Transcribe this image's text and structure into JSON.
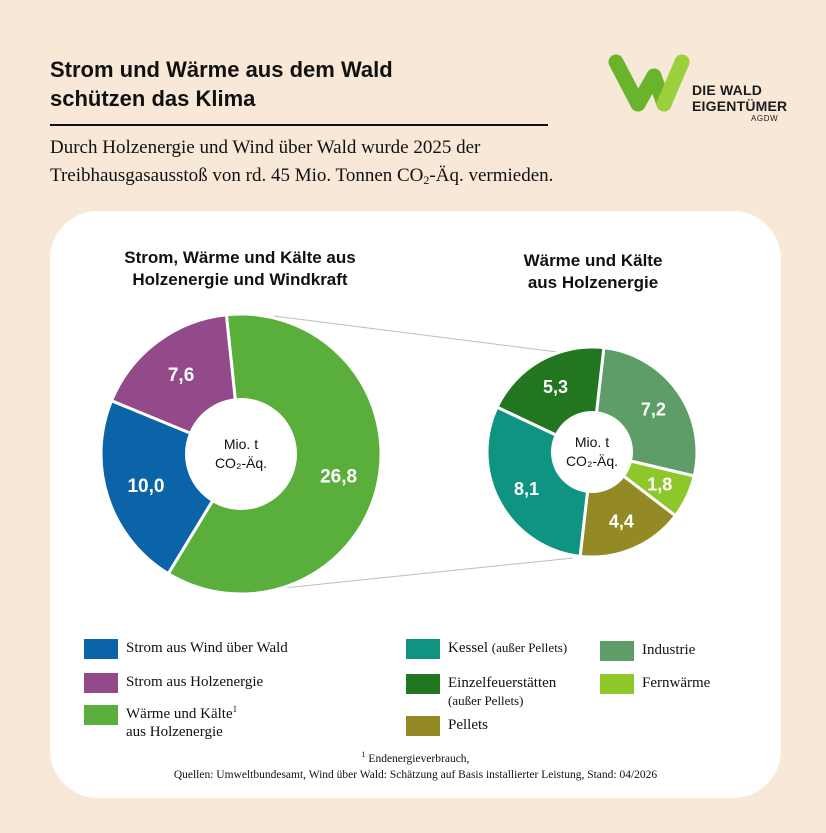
{
  "header": {
    "title_line1": "Strom und Wärme aus dem Wald",
    "title_line2": "schützen das Klima",
    "subtitle_line1": "Durch Holzenergie und Wind über Wald wurde 2025 der",
    "subtitle_line2_before": "Treibhausgasausstoß von rd. 45 Mio. Tonnen CO",
    "subtitle_line2_sub": "2",
    "subtitle_line2_after": "-Äq. vermieden."
  },
  "logo": {
    "line1": "DIE WALD",
    "line2": "EIGENTÜMER",
    "line3": "AGDW",
    "colors": [
      "#6ab42d",
      "#9ccf3c"
    ]
  },
  "chart_data": [
    {
      "type": "pie",
      "donut": true,
      "title_line1": "Strom, Wärme und Kälte aus",
      "title_line2": "Holzenergie und Windkraft",
      "center_line1": "Mio. t",
      "center_line2": "CO₂-Äq.",
      "slices": [
        {
          "label": "Wärme und Kälte aus Holzenergie",
          "value": 26.8,
          "display": "26,8",
          "color": "#5aaf3c"
        },
        {
          "label": "Strom aus Wind über Wald",
          "value": 10.0,
          "display": "10,0",
          "color": "#0b64a8"
        },
        {
          "label": "Strom aus Holzenergie",
          "value": 7.6,
          "display": "7,6",
          "color": "#924a8a"
        }
      ]
    },
    {
      "type": "pie",
      "donut": true,
      "title_line1": "Wärme und Kälte",
      "title_line2": "aus Holzenergie",
      "center_line1": "Mio. t",
      "center_line2": "CO₂-Äq.",
      "slices": [
        {
          "label": "Industrie",
          "value": 7.2,
          "display": "7,2",
          "color": "#5f9d68"
        },
        {
          "label": "Fernwärme",
          "value": 1.8,
          "display": "1,8",
          "color": "#8dc72a"
        },
        {
          "label": "Pellets",
          "value": 4.4,
          "display": "4,4",
          "color": "#938a26"
        },
        {
          "label": "Kessel (außer Pellets)",
          "value": 8.1,
          "display": "8,1",
          "color": "#0e9481"
        },
        {
          "label": "Einzelfeuerstätten (außer Pellets)",
          "value": 5.3,
          "display": "5,3",
          "color": "#21761f"
        }
      ]
    }
  ],
  "legend": {
    "wind_strom": "Strom aus Wind über Wald",
    "holz_strom": "Strom aus Holzenergie",
    "waerme_line1": "Wärme und Kälte",
    "waerme_sup": "1",
    "waerme_line2": "aus Holzenergie",
    "kessel": "Kessel",
    "kessel_note": "(außer Pellets)",
    "einzel": "Einzelfeuerstätten",
    "einzel_note": "(außer Pellets)",
    "pellets": "Pellets",
    "industrie": "Industrie",
    "fernwaerme": "Fernwärme"
  },
  "footnote": {
    "sup": "1",
    "line1": "Endenergieverbrauch,",
    "line2": "Quellen: Umweltbundesamt, Wind über Wald: Schätzung auf Basis installierter Leistung, Stand: 04/2026"
  }
}
